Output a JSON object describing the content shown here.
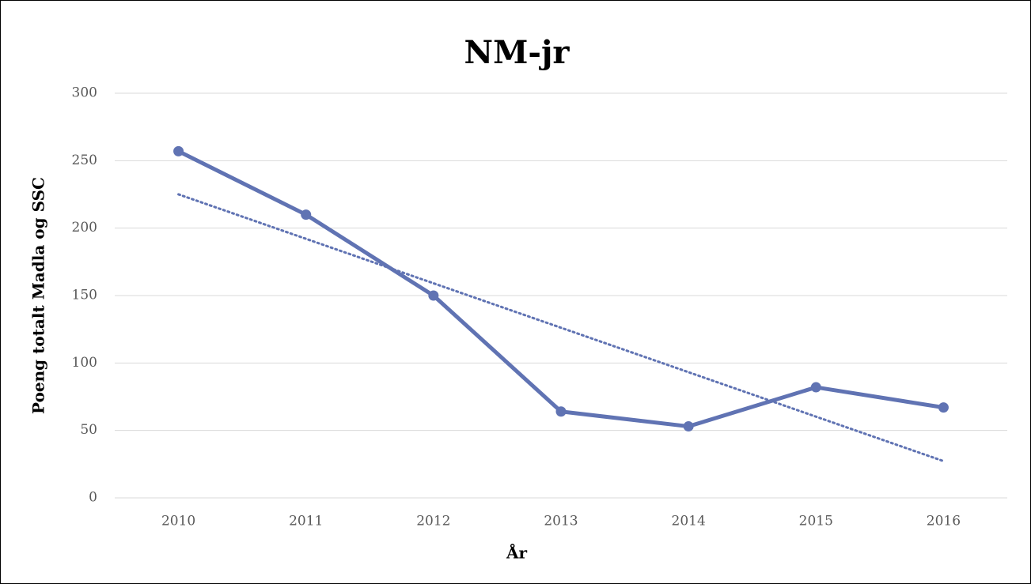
{
  "chart_data": {
    "type": "line",
    "title": "NM-jr",
    "x_label": "År",
    "y_label": "Poeng totalt Madla og SSC",
    "categories": [
      "2010",
      "2011",
      "2012",
      "2013",
      "2014",
      "2015",
      "2016"
    ],
    "values": [
      257,
      210,
      150,
      64,
      53,
      82,
      67
    ],
    "color": "#6073b3",
    "ylim": [
      0,
      300
    ],
    "yticks": [
      0,
      50,
      100,
      150,
      200,
      250,
      300
    ],
    "grid": true,
    "markers": true,
    "trendline": "linear"
  }
}
